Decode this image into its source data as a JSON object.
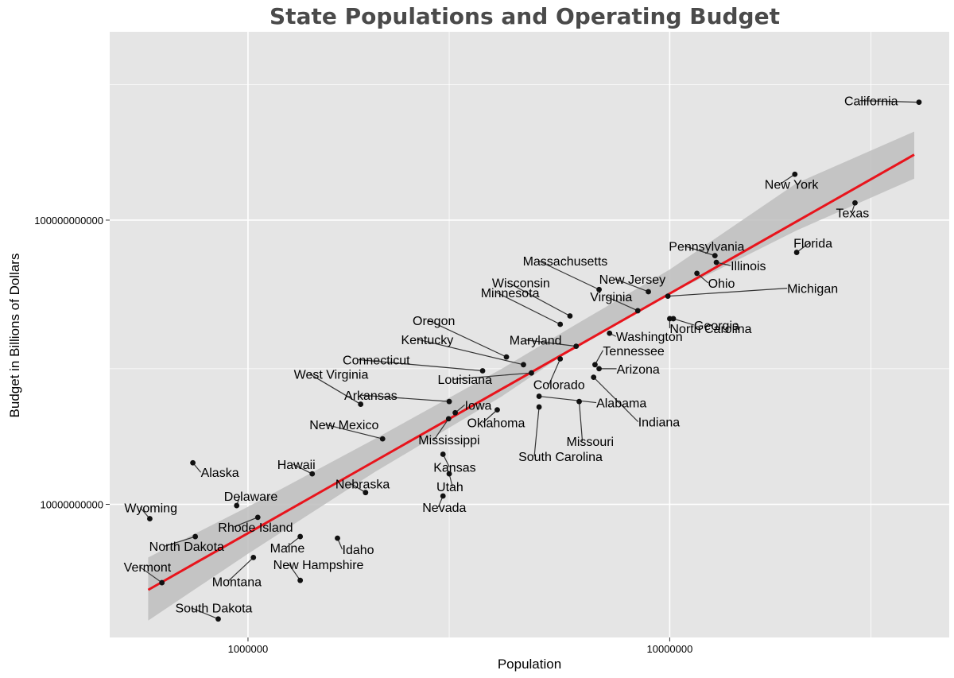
{
  "chart_data": {
    "type": "scatter",
    "title": "State Populations and Operating Budget",
    "xlabel": "Population",
    "ylabel": "Budget in Billions of Dollars",
    "x_scale": "log10",
    "y_scale": "log10",
    "xlim": [
      470000,
      46000000
    ],
    "ylim": [
      3400000000,
      460000000000
    ],
    "x_ticks": [
      1000000,
      10000000
    ],
    "x_tick_labels": [
      "1000000",
      "10000000"
    ],
    "y_ticks": [
      10000000000,
      100000000000
    ],
    "y_tick_labels": [
      "10000000000",
      "100000000000"
    ],
    "grid": true,
    "trend_line": {
      "color": "#e8141c",
      "from": {
        "x": 580000,
        "y": 5000000000
      },
      "to": {
        "x": 38000000,
        "y": 170000000000
      }
    },
    "confidence_band": {
      "color": "#bebebe",
      "x": [
        580000,
        1000000,
        2000000,
        4000000,
        6000000,
        10000000,
        20000000,
        38000000
      ],
      "lower": [
        3900000000,
        6700000000,
        13000000000,
        24000000000,
        36000000000,
        55000000000,
        92000000000,
        140000000000
      ],
      "upper": [
        6500000000,
        9800000000,
        17000000000,
        30000000000,
        43000000000,
        67000000000,
        135000000000,
        205000000000
      ]
    },
    "points": [
      {
        "name": "California",
        "x": 39000000,
        "y": 260000000000
      },
      {
        "name": "New York",
        "x": 19800000,
        "y": 145000000000
      },
      {
        "name": "Texas",
        "x": 27500000,
        "y": 115000000000
      },
      {
        "name": "Florida",
        "x": 20000000,
        "y": 77000000000
      },
      {
        "name": "Pennsylvania",
        "x": 12800000,
        "y": 75000000000
      },
      {
        "name": "Illinois",
        "x": 12900000,
        "y": 71000000000
      },
      {
        "name": "Ohio",
        "x": 11600000,
        "y": 65000000000
      },
      {
        "name": "Massachusetts",
        "x": 6800000,
        "y": 57000000000
      },
      {
        "name": "New Jersey",
        "x": 8900000,
        "y": 56000000000
      },
      {
        "name": "Michigan",
        "x": 9900000,
        "y": 54000000000
      },
      {
        "name": "Virginia",
        "x": 8400000,
        "y": 48000000000
      },
      {
        "name": "Wisconsin",
        "x": 5800000,
        "y": 46000000000
      },
      {
        "name": "North Carolina",
        "x": 10000000,
        "y": 45000000000
      },
      {
        "name": "Georgia",
        "x": 10200000,
        "y": 45000000000
      },
      {
        "name": "Minnesota",
        "x": 5500000,
        "y": 43000000000
      },
      {
        "name": "Washington",
        "x": 7200000,
        "y": 40000000000
      },
      {
        "name": "Maryland",
        "x": 6000000,
        "y": 36000000000
      },
      {
        "name": "Oregon",
        "x": 4100000,
        "y": 33000000000
      },
      {
        "name": "Colorado",
        "x": 5500000,
        "y": 32500000000
      },
      {
        "name": "Kentucky",
        "x": 4500000,
        "y": 31000000000
      },
      {
        "name": "Tennessee",
        "x": 6650000,
        "y": 31000000000
      },
      {
        "name": "Arizona",
        "x": 6800000,
        "y": 30000000000
      },
      {
        "name": "Connecticut",
        "x": 3600000,
        "y": 29500000000
      },
      {
        "name": "Louisiana",
        "x": 4700000,
        "y": 29000000000
      },
      {
        "name": "Indiana",
        "x": 6600000,
        "y": 28000000000
      },
      {
        "name": "Alabama",
        "x": 4900000,
        "y": 24000000000
      },
      {
        "name": "Missouri",
        "x": 6100000,
        "y": 23000000000
      },
      {
        "name": "Arkansas",
        "x": 3000000,
        "y": 23000000000
      },
      {
        "name": "West Virginia",
        "x": 1850000,
        "y": 22500000000
      },
      {
        "name": "Iowa",
        "x": 3100000,
        "y": 21000000000
      },
      {
        "name": "Oklahoma",
        "x": 3900000,
        "y": 21500000000
      },
      {
        "name": "South Carolina",
        "x": 4900000,
        "y": 22000000000
      },
      {
        "name": "Mississippi",
        "x": 2990000,
        "y": 20000000000
      },
      {
        "name": "New Mexico",
        "x": 2085000,
        "y": 17000000000
      },
      {
        "name": "Kansas",
        "x": 2900000,
        "y": 15000000000
      },
      {
        "name": "Alaska",
        "x": 740000,
        "y": 14000000000
      },
      {
        "name": "Hawaii",
        "x": 1420000,
        "y": 12800000000
      },
      {
        "name": "Utah",
        "x": 3000000,
        "y": 12800000000
      },
      {
        "name": "Nebraska",
        "x": 1900000,
        "y": 11000000000
      },
      {
        "name": "Nevada",
        "x": 2900000,
        "y": 10700000000
      },
      {
        "name": "Delaware",
        "x": 940000,
        "y": 9900000000
      },
      {
        "name": "Wyoming",
        "x": 585000,
        "y": 8900000000
      },
      {
        "name": "Rhode Island",
        "x": 1055000,
        "y": 9000000000
      },
      {
        "name": "North Dakota",
        "x": 750000,
        "y": 7700000000
      },
      {
        "name": "Maine",
        "x": 1330000,
        "y": 7700000000
      },
      {
        "name": "Idaho",
        "x": 1630000,
        "y": 7600000000
      },
      {
        "name": "Montana",
        "x": 1030000,
        "y": 6500000000
      },
      {
        "name": "Vermont",
        "x": 625000,
        "y": 5300000000
      },
      {
        "name": "New Hampshire",
        "x": 1330000,
        "y": 5400000000
      },
      {
        "name": "South Dakota",
        "x": 850000,
        "y": 3950000000
      }
    ]
  }
}
